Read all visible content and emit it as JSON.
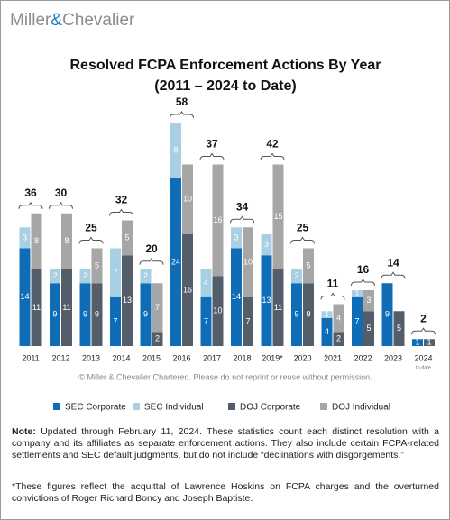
{
  "header": {
    "logo_left": "Miller",
    "logo_amp": "&",
    "logo_right": "Chevalier"
  },
  "chart_data": {
    "type": "grouped_stacked_bar",
    "title": "Resolved FCPA Enforcement Actions By Year",
    "subtitle": "(2011 – 2024 to Date)",
    "categories": [
      "2011",
      "2012",
      "2013",
      "2014",
      "2015",
      "2016",
      "2017",
      "2018",
      "2019*",
      "2020",
      "2021",
      "2022",
      "2023",
      "2024"
    ],
    "last_category_note": "to date",
    "totals": [
      36,
      30,
      25,
      32,
      20,
      58,
      37,
      34,
      42,
      25,
      11,
      16,
      14,
      2
    ],
    "series": [
      {
        "name": "SEC Corporate",
        "stack": "SEC",
        "color": "#0f6cb6",
        "values": [
          14,
          9,
          9,
          7,
          9,
          24,
          7,
          14,
          13,
          9,
          4,
          7,
          9,
          1
        ]
      },
      {
        "name": "SEC Individual",
        "stack": "SEC",
        "color": "#a9cfe3",
        "values": [
          3,
          2,
          2,
          7,
          2,
          8,
          4,
          3,
          3,
          2,
          1,
          1,
          0,
          0
        ]
      },
      {
        "name": "DOJ Corporate",
        "stack": "DOJ",
        "color": "#545e6b",
        "values": [
          11,
          11,
          9,
          13,
          2,
          16,
          10,
          7,
          11,
          9,
          2,
          5,
          5,
          1
        ]
      },
      {
        "name": "DOJ Individual",
        "stack": "DOJ",
        "color": "#a6a6a6",
        "values": [
          8,
          8,
          5,
          5,
          7,
          10,
          16,
          10,
          15,
          5,
          4,
          3,
          0,
          0
        ]
      }
    ],
    "copyright": "© Miller & Chevalier Chartered. Please do not reprint or reuse without permission."
  },
  "notes": {
    "note_label": "Note:",
    "note_text": "Updated through February 11, 2024. These statistics count each distinct resolution with a company and its affiliates as separate enforcement actions. They also include certain FCPA-related settlements and SEC default judgments, but do not include “declinations with disgorgements.”",
    "footnote": "*These figures reflect the acquittal of Lawrence Hoskins on FCPA charges and the overturned convictions of Roger Richard Boncy and Joseph Baptiste."
  }
}
